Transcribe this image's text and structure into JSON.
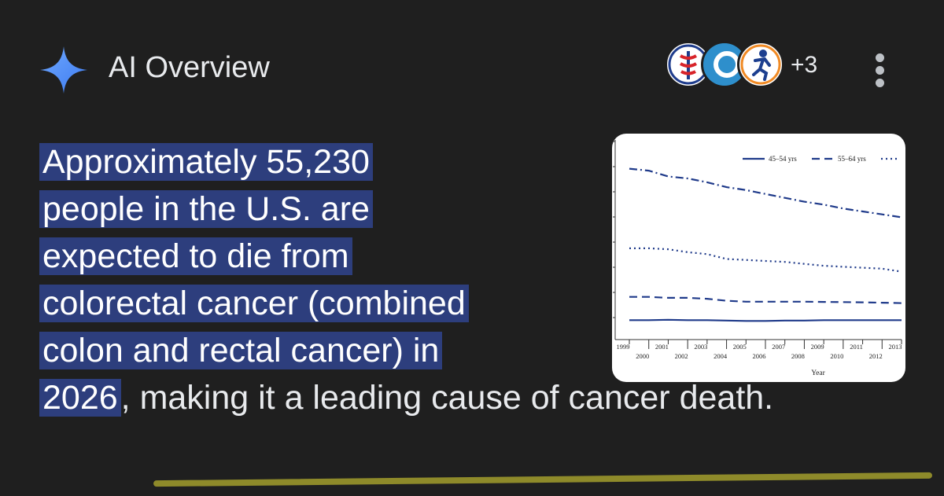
{
  "header": {
    "title": "AI Overview",
    "icon": "sparkle-icon",
    "accent_color": "#4a90ff",
    "sources": [
      {
        "name": "source-favicon-medical",
        "icon": "caduceus-icon"
      },
      {
        "name": "source-favicon-blue",
        "icon": "circle-logo-icon"
      },
      {
        "name": "source-favicon-runner",
        "icon": "runner-icon"
      }
    ],
    "more_sources": "+3",
    "menu_icon": "more-vert-icon"
  },
  "answer": {
    "highlighted_lines": [
      "Approximately 55,230",
      "people in the U.S. are",
      "expected to die from",
      "colorectal cancer (combined",
      "colon and rectal cancer) in",
      "2026"
    ],
    "rest_text": ", making it a leading cause of cancer death.",
    "highlight_color": "#2d3e7d",
    "underline_color": "#8e8a2a"
  },
  "chart_data": {
    "type": "line",
    "xlabel": "Year",
    "ylabel": "",
    "title": "",
    "x": [
      1999,
      2000,
      2001,
      2002,
      2003,
      2004,
      2005,
      2006,
      2007,
      2008,
      2009,
      2010,
      2011,
      2012,
      2013
    ],
    "x_tick_labels_top": [
      "1999",
      "2001",
      "2003",
      "2005",
      "2007",
      "2009",
      "2011",
      "2013"
    ],
    "x_tick_labels_bottom": [
      "2000",
      "2002",
      "2004",
      "2006",
      "2008",
      "2010",
      "2012"
    ],
    "ylim": [
      0,
      100
    ],
    "legend_placement": "top-right",
    "series": [
      {
        "name": "45–54 yrs",
        "style": "solid",
        "values": [
          10,
          10,
          10.2,
          10,
          10,
          9.8,
          9.6,
          9.6,
          9.8,
          9.8,
          10,
          10,
          10,
          10,
          10
        ]
      },
      {
        "name": "55–64 yrs",
        "style": "dashed",
        "values": [
          22,
          22,
          21.5,
          21.5,
          21,
          20,
          19.5,
          19.5,
          19.5,
          19.5,
          19.4,
          19.3,
          19.2,
          19,
          18.8
        ]
      },
      {
        "name": "",
        "style": "dotted",
        "values": [
          47,
          47,
          46.5,
          45,
          44,
          41.5,
          41,
          40.5,
          40,
          39,
          38,
          37.5,
          37,
          36.5,
          35
        ]
      },
      {
        "name": "",
        "style": "dashdot",
        "values": [
          88,
          87,
          84,
          83,
          81,
          78.5,
          77,
          75,
          73,
          71,
          69.5,
          67.5,
          66,
          64.5,
          63
        ]
      }
    ]
  }
}
